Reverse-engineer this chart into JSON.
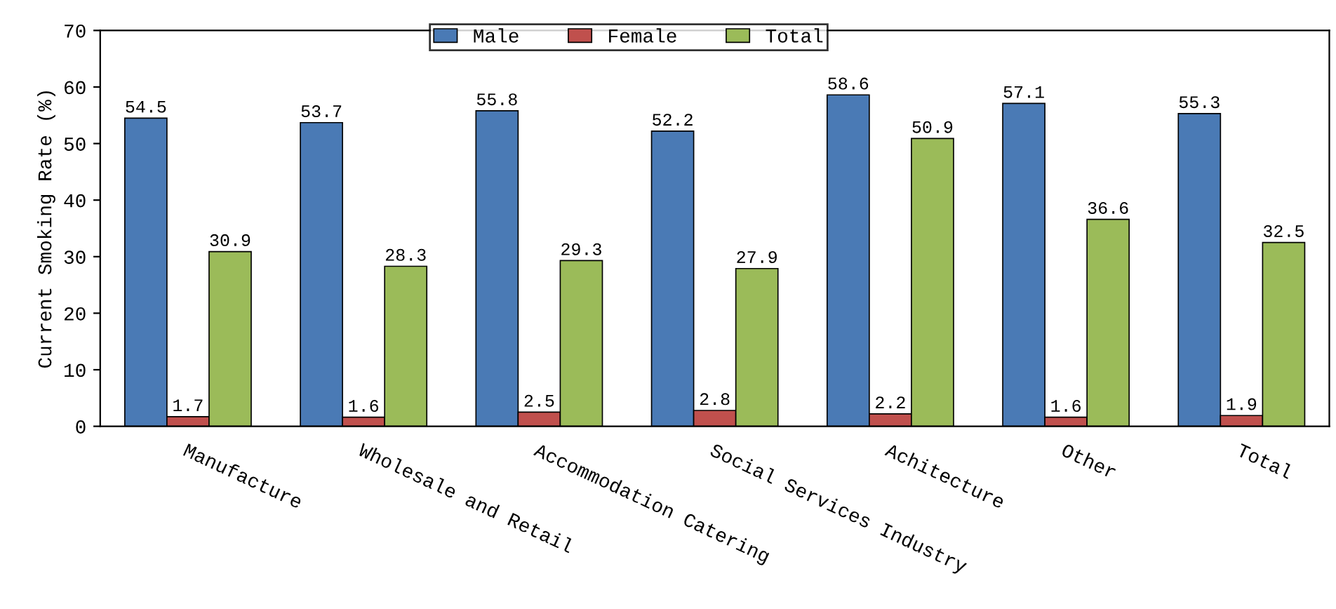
{
  "chart_data": {
    "type": "bar",
    "ylabel": "Current Smoking Rate (%)",
    "categories": [
      "Manufacture",
      "Wholesale and Retail",
      "Accommodation Catering",
      "Social Services Industry",
      "Achitecture",
      "Other",
      "Total"
    ],
    "series": [
      {
        "name": "Male",
        "color": "#4a7ab5",
        "values": [
          54.5,
          53.7,
          55.8,
          52.2,
          58.6,
          57.1,
          55.3
        ]
      },
      {
        "name": "Female",
        "color": "#c0504d",
        "values": [
          1.7,
          1.6,
          2.5,
          2.8,
          2.2,
          1.6,
          1.9
        ]
      },
      {
        "name": "Total",
        "color": "#9bbb59",
        "values": [
          30.9,
          28.3,
          29.3,
          27.9,
          50.9,
          36.6,
          32.5
        ]
      }
    ],
    "ylim": [
      0,
      70
    ],
    "yticks": [
      0,
      10,
      20,
      30,
      40,
      50,
      60,
      70
    ],
    "data_labels": true,
    "legend": "top",
    "grid": false
  }
}
